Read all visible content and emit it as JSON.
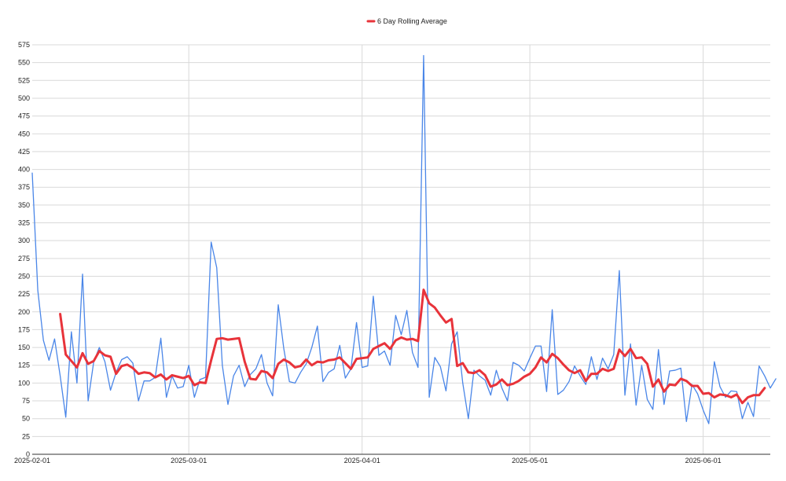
{
  "chart_data": {
    "type": "line",
    "title": "",
    "xlabel": "",
    "ylabel": "",
    "legend_position": "top-center",
    "grid": true,
    "ylim": [
      0,
      575
    ],
    "xlim": [
      "2025-02-01",
      "2025-06-13"
    ],
    "y_ticks": [
      0,
      25,
      50,
      75,
      100,
      125,
      150,
      175,
      200,
      225,
      250,
      275,
      300,
      325,
      350,
      375,
      400,
      425,
      450,
      475,
      500,
      525,
      550,
      575
    ],
    "x_ticks": [
      "2025-02-01",
      "2025-03-01",
      "2025-04-01",
      "2025-05-01",
      "2025-06-01"
    ],
    "series": [
      {
        "name": "",
        "color": "#4a86e8",
        "start_date": "2025-02-01",
        "values": [
          395,
          230,
          160,
          132,
          162,
          110,
          52,
          172,
          100,
          253,
          75,
          130,
          150,
          130,
          90,
          115,
          133,
          137,
          128,
          75,
          103,
          103,
          108,
          163,
          80,
          110,
          93,
          95,
          125,
          80,
          105,
          108,
          298,
          262,
          125,
          70,
          110,
          125,
          95,
          112,
          120,
          140,
          100,
          82,
          210,
          148,
          102,
          100,
          115,
          127,
          150,
          180,
          102,
          115,
          120,
          153,
          107,
          120,
          185,
          122,
          124,
          222,
          139,
          145,
          125,
          195,
          168,
          202,
          143,
          122,
          560,
          80,
          136,
          123,
          89,
          155,
          172,
          100,
          50,
          118,
          110,
          104,
          83,
          118,
          93,
          75,
          129,
          125,
          117,
          135,
          152,
          152,
          88,
          203,
          84,
          90,
          102,
          124,
          110,
          98,
          137,
          105,
          135,
          120,
          140,
          258,
          83,
          155,
          69,
          125,
          77,
          63,
          147,
          70,
          117,
          118,
          121,
          46,
          98,
          85,
          62,
          43,
          130,
          95,
          80,
          89,
          88,
          50,
          73,
          53,
          124,
          110,
          93,
          106
        ]
      },
      {
        "name": "6 Day Rolling Average",
        "color": "#e8333a",
        "start_date": "2025-02-06",
        "values": [
          197,
          140,
          131,
          122,
          142,
          127,
          131,
          145,
          139,
          137,
          113,
          124,
          126,
          121,
          113,
          115,
          114,
          108,
          112,
          105,
          111,
          109,
          107,
          110,
          97,
          101,
          100,
          132,
          162,
          163,
          161,
          162,
          163,
          130,
          106,
          105,
          117,
          115,
          107,
          127,
          133,
          129,
          122,
          124,
          133,
          125,
          130,
          129,
          132,
          133,
          136,
          128,
          120,
          134,
          135,
          136,
          148,
          152,
          156,
          148,
          160,
          164,
          161,
          162,
          159,
          231,
          212,
          206,
          195,
          185,
          190,
          124,
          128,
          115,
          114,
          118,
          111,
          95,
          98,
          105,
          97,
          99,
          103,
          109,
          113,
          122,
          136,
          129,
          141,
          135,
          126,
          118,
          114,
          118,
          103,
          113,
          113,
          120,
          117,
          120,
          147,
          138,
          148,
          135,
          136,
          127,
          95,
          105,
          88,
          98,
          97,
          106,
          103,
          96,
          96,
          85,
          86,
          80,
          84,
          83,
          80,
          84,
          72,
          80,
          83,
          83,
          93
        ]
      }
    ]
  }
}
